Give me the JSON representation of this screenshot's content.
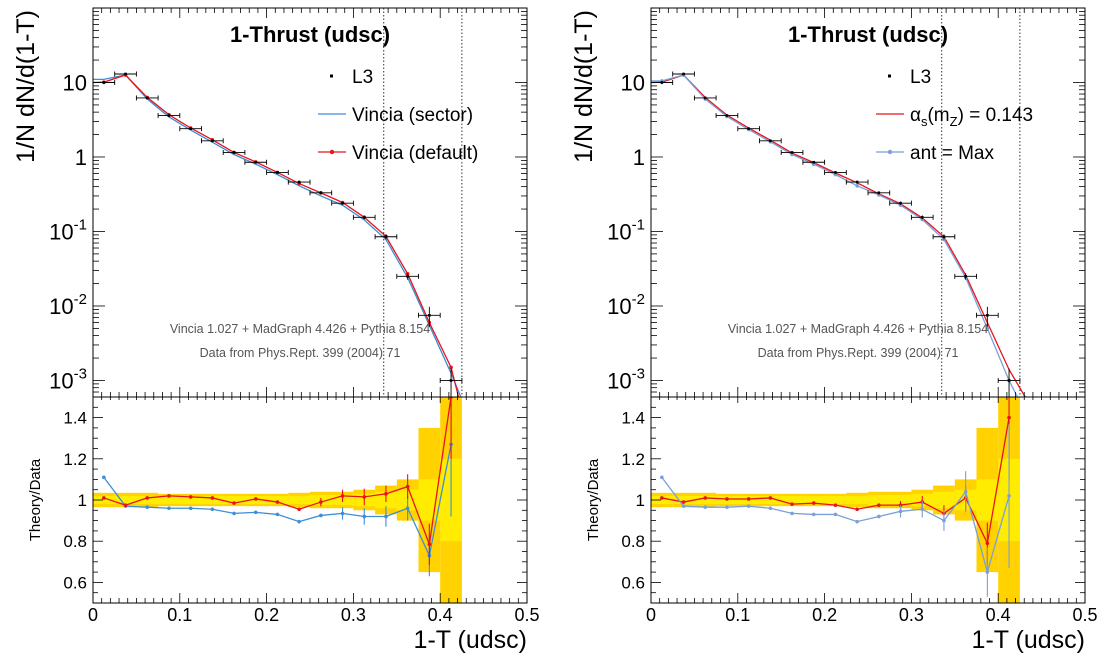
{
  "colors": {
    "data": "#000000",
    "sector": "#3d8ed8",
    "default": "#e8141b",
    "alphas": "#e8141b",
    "antmax": "#7b9fd8",
    "band_outer": "#ffd200",
    "band_inner": "#ffec00",
    "axis": "#000000"
  },
  "chart_data": [
    {
      "type": "line",
      "title": "1-Thrust (udsc)",
      "xlabel": "1-T (udsc)",
      "ylabel": "1/N dN/d(1-T)",
      "ratio_ylabel": "Theory/Data",
      "xlim": [
        0,
        0.5
      ],
      "ylim": [
        0.0006,
        100
      ],
      "yscale": "log",
      "ratio_ylim": [
        0.5,
        1.5
      ],
      "x_ticks": [
        "0",
        "0.1",
        "0.2",
        "0.3",
        "0.4",
        "0.5"
      ],
      "y_ticks": [
        {
          "base": "10",
          "exp": "-3",
          "value": 0.001
        },
        {
          "base": "10",
          "exp": "-2",
          "value": 0.01
        },
        {
          "base": "10",
          "exp": "-1",
          "value": 0.1
        },
        {
          "base": "1",
          "exp": "",
          "value": 1
        },
        {
          "base": "10",
          "exp": "",
          "value": 10
        }
      ],
      "ratio_ticks": [
        "0.6",
        "0.8",
        "1",
        "1.2",
        "1.4"
      ],
      "vlines": [
        0.335,
        0.425
      ],
      "annotations": [
        "Vincia 1.027 + MadGraph 4.426 + Pythia 8.154",
        "Data from Phys.Rept. 399 (2004) 71"
      ],
      "legend": {
        "position": "top-right",
        "entries": [
          "L3",
          "Vincia (sector)",
          "Vincia (default)"
        ]
      },
      "data_series": {
        "name": "L3",
        "bins": [
          [
            0,
            0.025
          ],
          [
            0.025,
            0.05
          ],
          [
            0.05,
            0.075
          ],
          [
            0.075,
            0.1
          ],
          [
            0.1,
            0.125
          ],
          [
            0.125,
            0.15
          ],
          [
            0.15,
            0.175
          ],
          [
            0.175,
            0.2
          ],
          [
            0.2,
            0.225
          ],
          [
            0.225,
            0.25
          ],
          [
            0.25,
            0.275
          ],
          [
            0.275,
            0.3
          ],
          [
            0.3,
            0.325
          ],
          [
            0.325,
            0.35
          ],
          [
            0.35,
            0.375
          ],
          [
            0.375,
            0.4
          ],
          [
            0.4,
            0.425
          ]
        ],
        "x": [
          0.0125,
          0.0375,
          0.0625,
          0.0875,
          0.1125,
          0.1375,
          0.1625,
          0.1875,
          0.2125,
          0.2375,
          0.2625,
          0.2875,
          0.3125,
          0.3375,
          0.3625,
          0.3875,
          0.4125
        ],
        "y": [
          10,
          13,
          6.2,
          3.6,
          2.4,
          1.65,
          1.15,
          0.85,
          0.62,
          0.46,
          0.33,
          0.24,
          0.155,
          0.085,
          0.025,
          0.0075,
          0.001
        ],
        "yerr_rel": [
          0.05,
          0.04,
          0.04,
          0.04,
          0.04,
          0.04,
          0.04,
          0.04,
          0.04,
          0.05,
          0.05,
          0.05,
          0.06,
          0.08,
          0.1,
          0.3,
          0.45
        ]
      },
      "series": [
        {
          "name": "Vincia (sector)",
          "color_key": "sector",
          "x": [
            0.0,
            0.0125,
            0.0375,
            0.0625,
            0.0875,
            0.1125,
            0.1375,
            0.1625,
            0.1875,
            0.2125,
            0.2375,
            0.2625,
            0.2875,
            0.3125,
            0.3375,
            0.3625,
            0.3875,
            0.4125,
            0.43
          ],
          "y": [
            11.0,
            11.0,
            12.6,
            6.0,
            3.45,
            2.3,
            1.58,
            1.08,
            0.8,
            0.58,
            0.41,
            0.3,
            0.225,
            0.143,
            0.078,
            0.024,
            0.0055,
            0.00125,
            0.0004
          ],
          "markers": false
        },
        {
          "name": "Vincia (default)",
          "color_key": "default",
          "x": [
            0.0,
            0.0125,
            0.0375,
            0.0625,
            0.0875,
            0.1125,
            0.1375,
            0.1625,
            0.1875,
            0.2125,
            0.2375,
            0.2625,
            0.2875,
            0.3125,
            0.3375,
            0.3625,
            0.3875,
            0.4125,
            0.425
          ],
          "y": [
            10.0,
            10.1,
            12.6,
            6.3,
            3.7,
            2.45,
            1.7,
            1.15,
            0.86,
            0.62,
            0.44,
            0.33,
            0.245,
            0.155,
            0.086,
            0.027,
            0.006,
            0.0015,
            0.0004
          ],
          "markers": true
        }
      ],
      "ratio_series": [
        {
          "name": "Vincia (sector)",
          "color_key": "sector",
          "x": [
            0.0125,
            0.0375,
            0.0625,
            0.0875,
            0.1125,
            0.1375,
            0.1625,
            0.1875,
            0.2125,
            0.2375,
            0.2625,
            0.2875,
            0.3125,
            0.3375,
            0.3625,
            0.3875,
            0.4125
          ],
          "y": [
            1.11,
            0.97,
            0.965,
            0.96,
            0.96,
            0.955,
            0.935,
            0.94,
            0.93,
            0.895,
            0.925,
            0.935,
            0.92,
            0.92,
            0.96,
            0.73,
            1.27
          ],
          "err": [
            0,
            0,
            0,
            0,
            0,
            0,
            0,
            0,
            0,
            0,
            0,
            0.03,
            0.04,
            0.05,
            0.06,
            0.1,
            0.35
          ],
          "markers": true
        },
        {
          "name": "Vincia (default)",
          "color_key": "default",
          "x": [
            0.0125,
            0.0375,
            0.0625,
            0.0875,
            0.1125,
            0.1375,
            0.1625,
            0.1875,
            0.2125,
            0.2375,
            0.2625,
            0.2875,
            0.3125,
            0.3375,
            0.3625,
            0.3875,
            0.4125
          ],
          "y": [
            1.01,
            0.975,
            1.01,
            1.02,
            1.015,
            1.01,
            0.985,
            1.005,
            0.99,
            0.955,
            0.99,
            1.02,
            1.015,
            1.03,
            1.065,
            0.785,
            1.5
          ],
          "err": [
            0,
            0,
            0,
            0,
            0,
            0,
            0,
            0,
            0,
            0,
            0.02,
            0.03,
            0.04,
            0.04,
            0.06,
            0.1,
            0.3
          ],
          "markers": true
        }
      ],
      "ratio_band": {
        "x_edges": [
          0,
          0.025,
          0.05,
          0.075,
          0.1,
          0.125,
          0.15,
          0.175,
          0.2,
          0.225,
          0.25,
          0.275,
          0.3,
          0.325,
          0.35,
          0.375,
          0.4,
          0.425
        ],
        "outer": [
          0.035,
          0.035,
          0.035,
          0.03,
          0.03,
          0.03,
          0.03,
          0.03,
          0.03,
          0.035,
          0.04,
          0.04,
          0.05,
          0.07,
          0.1,
          0.35,
          0.55
        ],
        "inner": [
          0.02,
          0.02,
          0.02,
          0.02,
          0.02,
          0.02,
          0.02,
          0.02,
          0.02,
          0.02,
          0.025,
          0.025,
          0.03,
          0.04,
          0.05,
          0.1,
          0.2
        ]
      }
    },
    {
      "type": "line",
      "title": "1-Thrust (udsc)",
      "xlabel": "1-T (udsc)",
      "ylabel": "1/N dN/d(1-T)",
      "ratio_ylabel": "Theory/Data",
      "xlim": [
        0,
        0.5
      ],
      "ylim": [
        0.0006,
        100
      ],
      "yscale": "log",
      "ratio_ylim": [
        0.5,
        1.5
      ],
      "x_ticks": [
        "0",
        "0.1",
        "0.2",
        "0.3",
        "0.4",
        "0.5"
      ],
      "y_ticks": [
        {
          "base": "10",
          "exp": "-3",
          "value": 0.001
        },
        {
          "base": "10",
          "exp": "-2",
          "value": 0.01
        },
        {
          "base": "10",
          "exp": "-1",
          "value": 0.1
        },
        {
          "base": "1",
          "exp": "",
          "value": 1
        },
        {
          "base": "10",
          "exp": "",
          "value": 10
        }
      ],
      "ratio_ticks": [
        "0.6",
        "0.8",
        "1",
        "1.2",
        "1.4"
      ],
      "vlines": [
        0.335,
        0.425
      ],
      "annotations": [
        "Vincia 1.027 + MadGraph 4.426 + Pythia 8.154",
        "Data from Phys.Rept. 399 (2004) 71"
      ],
      "legend": {
        "position": "top-right",
        "entries": [
          "L3",
          "α_s(m_Z) = 0.143",
          "ant = Max"
        ]
      },
      "data_series": {
        "name": "L3",
        "bins": [
          [
            0,
            0.025
          ],
          [
            0.025,
            0.05
          ],
          [
            0.05,
            0.075
          ],
          [
            0.075,
            0.1
          ],
          [
            0.1,
            0.125
          ],
          [
            0.125,
            0.15
          ],
          [
            0.15,
            0.175
          ],
          [
            0.175,
            0.2
          ],
          [
            0.2,
            0.225
          ],
          [
            0.225,
            0.25
          ],
          [
            0.25,
            0.275
          ],
          [
            0.275,
            0.3
          ],
          [
            0.3,
            0.325
          ],
          [
            0.325,
            0.35
          ],
          [
            0.35,
            0.375
          ],
          [
            0.375,
            0.4
          ],
          [
            0.4,
            0.425
          ]
        ],
        "x": [
          0.0125,
          0.0375,
          0.0625,
          0.0875,
          0.1125,
          0.1375,
          0.1625,
          0.1875,
          0.2125,
          0.2375,
          0.2625,
          0.2875,
          0.3125,
          0.3375,
          0.3625,
          0.3875,
          0.4125
        ],
        "y": [
          10,
          13,
          6.2,
          3.6,
          2.4,
          1.65,
          1.15,
          0.85,
          0.62,
          0.46,
          0.33,
          0.24,
          0.155,
          0.085,
          0.025,
          0.0075,
          0.001
        ],
        "yerr_rel": [
          0.05,
          0.04,
          0.04,
          0.04,
          0.04,
          0.04,
          0.04,
          0.04,
          0.04,
          0.05,
          0.05,
          0.05,
          0.06,
          0.08,
          0.1,
          0.3,
          0.45
        ]
      },
      "series": [
        {
          "name": "α_s(m_Z) = 0.143",
          "color_key": "alphas",
          "x": [
            0.0,
            0.0125,
            0.0375,
            0.0625,
            0.0875,
            0.1125,
            0.1375,
            0.1625,
            0.1875,
            0.2125,
            0.2375,
            0.2625,
            0.2875,
            0.3125,
            0.3375,
            0.3625,
            0.3875,
            0.4125,
            0.44
          ],
          "y": [
            10.0,
            10.1,
            12.6,
            6.3,
            3.65,
            2.45,
            1.68,
            1.13,
            0.84,
            0.61,
            0.45,
            0.32,
            0.235,
            0.152,
            0.085,
            0.026,
            0.006,
            0.0014,
            0.0004
          ],
          "markers": false
        },
        {
          "name": "ant = Max",
          "color_key": "antmax",
          "x": [
            0.0,
            0.0125,
            0.0375,
            0.0625,
            0.0875,
            0.1125,
            0.1375,
            0.1625,
            0.1875,
            0.2125,
            0.2375,
            0.2625,
            0.2875,
            0.3125,
            0.3375,
            0.3625,
            0.3875,
            0.4125,
            0.43
          ],
          "y": [
            10.5,
            10.5,
            12.6,
            6.0,
            3.5,
            2.33,
            1.6,
            1.08,
            0.8,
            0.58,
            0.41,
            0.31,
            0.225,
            0.145,
            0.078,
            0.024,
            0.005,
            0.001,
            0.0004
          ],
          "markers": true
        }
      ],
      "ratio_series": [
        {
          "name": "α_s(m_Z) = 0.143",
          "color_key": "alphas",
          "x": [
            0.0125,
            0.0375,
            0.0625,
            0.0875,
            0.1125,
            0.1375,
            0.1625,
            0.1875,
            0.2125,
            0.2375,
            0.2625,
            0.2875,
            0.3125,
            0.3375,
            0.3625,
            0.3875,
            0.4125
          ],
          "y": [
            1.01,
            0.99,
            1.01,
            1.005,
            1.005,
            1.01,
            0.98,
            0.985,
            0.975,
            0.955,
            0.975,
            0.975,
            0.99,
            0.935,
            1.01,
            0.79,
            1.4
          ],
          "err": [
            0,
            0,
            0,
            0,
            0,
            0,
            0,
            0,
            0,
            0,
            0,
            0.02,
            0.03,
            0.04,
            0.06,
            0.1,
            0.3
          ],
          "markers": true
        },
        {
          "name": "ant = Max",
          "color_key": "antmax",
          "x": [
            0.0125,
            0.0375,
            0.0625,
            0.0875,
            0.1125,
            0.1375,
            0.1625,
            0.1875,
            0.2125,
            0.2375,
            0.2625,
            0.2875,
            0.3125,
            0.3375,
            0.3625,
            0.3875,
            0.4125
          ],
          "y": [
            1.11,
            0.97,
            0.965,
            0.965,
            0.97,
            0.96,
            0.935,
            0.93,
            0.93,
            0.895,
            0.92,
            0.945,
            0.955,
            0.9,
            1.04,
            0.65,
            1.02
          ],
          "err": [
            0,
            0,
            0,
            0,
            0,
            0,
            0,
            0,
            0,
            0,
            0,
            0.03,
            0.04,
            0.05,
            0.1,
            0.12,
            0.35
          ],
          "markers": true
        }
      ],
      "ratio_band": {
        "x_edges": [
          0,
          0.025,
          0.05,
          0.075,
          0.1,
          0.125,
          0.15,
          0.175,
          0.2,
          0.225,
          0.25,
          0.275,
          0.3,
          0.325,
          0.35,
          0.375,
          0.4,
          0.425
        ],
        "outer": [
          0.035,
          0.035,
          0.035,
          0.03,
          0.03,
          0.03,
          0.03,
          0.03,
          0.03,
          0.035,
          0.04,
          0.04,
          0.05,
          0.07,
          0.1,
          0.35,
          0.55
        ],
        "inner": [
          0.02,
          0.02,
          0.02,
          0.02,
          0.02,
          0.02,
          0.02,
          0.02,
          0.02,
          0.02,
          0.025,
          0.025,
          0.03,
          0.04,
          0.05,
          0.1,
          0.2
        ]
      }
    }
  ]
}
